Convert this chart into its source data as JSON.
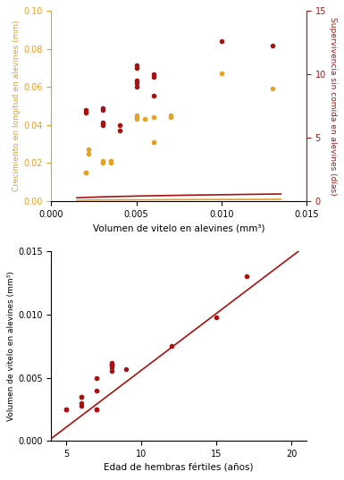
{
  "top": {
    "orange_points": [
      [
        0.002,
        0.015
      ],
      [
        0.002,
        0.015
      ],
      [
        0.0022,
        0.025
      ],
      [
        0.0022,
        0.027
      ],
      [
        0.003,
        0.02
      ],
      [
        0.003,
        0.021
      ],
      [
        0.0035,
        0.02
      ],
      [
        0.0035,
        0.021
      ],
      [
        0.005,
        0.043
      ],
      [
        0.005,
        0.044
      ],
      [
        0.005,
        0.045
      ],
      [
        0.0055,
        0.043
      ],
      [
        0.006,
        0.044
      ],
      [
        0.006,
        0.031
      ],
      [
        0.007,
        0.044
      ],
      [
        0.007,
        0.045
      ],
      [
        0.01,
        0.067
      ],
      [
        0.013,
        0.059
      ]
    ],
    "red_points_days": [
      [
        0.002,
        7.0
      ],
      [
        0.002,
        7.2
      ],
      [
        0.003,
        6.0
      ],
      [
        0.003,
        6.1
      ],
      [
        0.003,
        6.2
      ],
      [
        0.003,
        7.2
      ],
      [
        0.003,
        7.3
      ],
      [
        0.004,
        5.6
      ],
      [
        0.004,
        6.0
      ],
      [
        0.005,
        9.0
      ],
      [
        0.005,
        9.3
      ],
      [
        0.005,
        9.5
      ],
      [
        0.005,
        10.5
      ],
      [
        0.005,
        10.7
      ],
      [
        0.006,
        9.8
      ],
      [
        0.006,
        10.0
      ],
      [
        0.006,
        8.3
      ],
      [
        0.01,
        12.6
      ],
      [
        0.013,
        12.3
      ]
    ],
    "xlabel": "Volumen de vitelo en alevines (mm³)",
    "ylabel_left": "Crecimiento en longitud en alevines (mm)",
    "ylabel_right": "Supervivencia sin comida en alevines (días)",
    "xlim": [
      0.0,
      0.015
    ],
    "ylim_left": [
      0.0,
      0.1
    ],
    "ylim_right": [
      0,
      15
    ],
    "xticks": [
      0.0,
      0.005,
      0.01,
      0.015
    ],
    "yticks_left": [
      0.0,
      0.02,
      0.04,
      0.06,
      0.08,
      0.1
    ],
    "yticks_right": [
      0,
      5,
      10,
      15
    ],
    "orange_color": "#E8A020",
    "red_color": "#AA1010",
    "orange_curve_x": [
      0.0015,
      0.014
    ],
    "orange_curve_coeffs": [
      0.004,
      0.35
    ],
    "red_curve_coeffs": [
      2.5,
      0.35
    ]
  },
  "bottom": {
    "points": [
      [
        5,
        0.0025
      ],
      [
        5,
        0.0025
      ],
      [
        6,
        0.0035
      ],
      [
        6,
        0.0035
      ],
      [
        6,
        0.0028
      ],
      [
        6,
        0.003
      ],
      [
        7,
        0.005
      ],
      [
        7,
        0.004
      ],
      [
        7,
        0.0025
      ],
      [
        7,
        0.0025
      ],
      [
        8,
        0.006
      ],
      [
        8,
        0.0058
      ],
      [
        8,
        0.006
      ],
      [
        8,
        0.0062
      ],
      [
        8,
        0.0055
      ],
      [
        8,
        0.006
      ],
      [
        9,
        0.0057
      ],
      [
        12,
        0.0075
      ],
      [
        15,
        0.0098
      ],
      [
        17,
        0.013
      ]
    ],
    "line_x": [
      4.0,
      21.0
    ],
    "line_y": [
      0.0002,
      0.01545
    ],
    "xlabel": "Edad de hembras fértiles (años)",
    "ylabel": "Volumen de vitelo en alevines (mm³)",
    "xlim": [
      4,
      21
    ],
    "ylim": [
      0.0,
      0.015
    ],
    "xticks": [
      5,
      10,
      15,
      20
    ],
    "yticks": [
      0.0,
      0.005,
      0.01,
      0.015
    ],
    "red_color": "#AA1010"
  }
}
